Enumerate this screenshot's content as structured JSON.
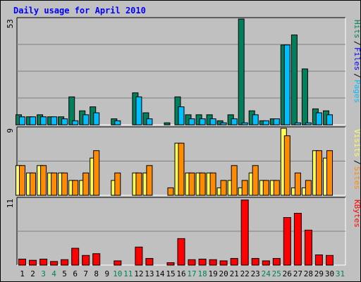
{
  "chart_data": {
    "type": "bar",
    "title": "Daily usage for April 2010",
    "days": [
      "1",
      "2",
      "3",
      "4",
      "5",
      "6",
      "7",
      "8",
      "9",
      "10",
      "11",
      "12",
      "13",
      "14",
      "15",
      "16",
      "17",
      "18",
      "19",
      "20",
      "21",
      "22",
      "23",
      "24",
      "25",
      "26",
      "27",
      "28",
      "29",
      "30",
      "31"
    ],
    "weekend_days": [
      "3",
      "4",
      "10",
      "11",
      "17",
      "18",
      "24",
      "25",
      "31"
    ],
    "panels": [
      {
        "id": "hits",
        "max_label": "53",
        "ylim": [
          0,
          53
        ],
        "series": [
          {
            "name": "Hits",
            "color": "#00805c",
            "values": [
              5,
              4,
              5,
              4,
              4,
              14,
              7,
              9,
              0,
              3,
              0,
              16,
              6,
              0,
              1,
              14,
              5,
              5,
              5,
              2,
              5,
              53,
              7,
              2,
              3,
              40,
              45,
              28,
              8,
              7,
              0
            ]
          },
          {
            "name": "Files",
            "color": "#00bfff",
            "values": [
              4,
              4,
              4,
              4,
              3,
              2,
              5,
              6,
              0,
              2,
              0,
              14,
              3,
              0,
              0,
              9,
              3,
              3,
              3,
              1,
              3,
              1,
              5,
              2,
              3,
              40,
              1,
              1,
              6,
              5,
              0
            ]
          },
          {
            "name": "Pages",
            "color": "#00bfff",
            "values": []
          }
        ],
        "legend": [
          "Pages",
          "Files",
          "Hits"
        ]
      },
      {
        "id": "visits",
        "max_label": "9",
        "ylim": [
          0,
          9
        ],
        "series": [
          {
            "name": "Visits",
            "color": "#ffff55",
            "values": [
              4,
              3,
              4,
              3,
              3,
              2,
              2,
              5,
              0,
              2,
              0,
              3,
              3,
              0,
              0,
              7,
              3,
              3,
              3,
              1,
              2,
              1,
              3,
              2,
              2,
              9,
              1,
              1,
              6,
              5,
              0
            ]
          },
          {
            "name": "Sites",
            "color": "#ff8c00",
            "values": [
              4,
              3,
              4,
              3,
              3,
              2,
              3,
              6,
              0,
              3,
              0,
              3,
              4,
              0,
              1,
              7,
              3,
              3,
              3,
              2,
              4,
              2,
              4,
              2,
              2,
              8,
              3,
              2,
              6,
              6,
              0
            ]
          }
        ],
        "legend": [
          "Sites",
          "Visits"
        ]
      },
      {
        "id": "kbytes",
        "max_label": "11",
        "ylim": [
          0,
          11
        ],
        "series": [
          {
            "name": "KBytes",
            "color": "#ff0000",
            "values": [
              1,
              0.8,
              1,
              0.6,
              0.9,
              2.8,
              1.6,
              1.9,
              0,
              0.7,
              0,
              3,
              1.1,
              0,
              0.4,
              4.4,
              0.9,
              1,
              0.9,
              0.7,
              1.1,
              10.8,
              1.1,
              0.7,
              1.1,
              7.9,
              8.6,
              5.8,
              1.7,
              1.6,
              0
            ]
          }
        ],
        "legend": [
          "KBytes"
        ]
      }
    ]
  }
}
